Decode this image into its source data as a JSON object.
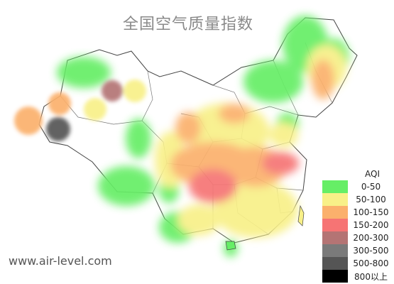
{
  "title": "全国空气质量指数",
  "watermark": "www.air-level.com",
  "legend": {
    "title": "AQI",
    "items": [
      {
        "label": "0-50",
        "color": "#66ee66"
      },
      {
        "label": "50-100",
        "color": "#f8f088"
      },
      {
        "label": "100-150",
        "color": "#fbb06c"
      },
      {
        "label": "150-200",
        "color": "#f67474"
      },
      {
        "label": "200-300",
        "color": "#b47474"
      },
      {
        "label": "300-500",
        "color": "#7a7a7a"
      },
      {
        "label": "500-800",
        "color": "#555555"
      },
      {
        "label": "800以上",
        "color": "#000000"
      }
    ]
  }
}
